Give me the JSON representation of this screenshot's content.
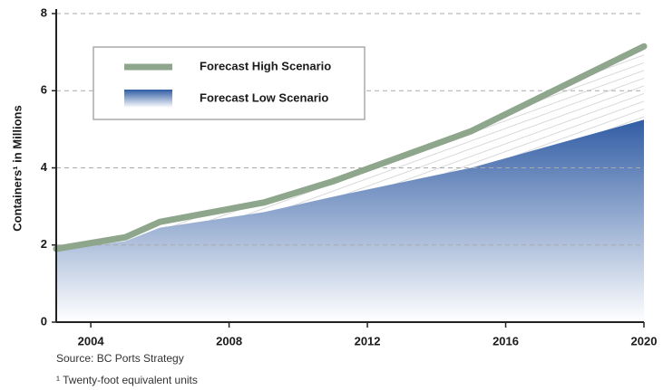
{
  "chart_data": {
    "type": "line",
    "y_label": "Containers¹ in Millions",
    "source": "Source: BC Ports Strategy",
    "footnote": "¹ Twenty-foot equivalent units",
    "x": [
      2003,
      2005,
      2006,
      2009,
      2011,
      2015,
      2020
    ],
    "series": [
      {
        "name": "Forecast High Scenario",
        "color": "#8ea68b",
        "values": [
          1.9,
          2.2,
          2.6,
          3.1,
          3.65,
          4.95,
          7.15
        ]
      },
      {
        "name": "Forecast Low Scenario",
        "color": "#2f5ba3",
        "values": [
          1.85,
          2.1,
          2.45,
          2.85,
          3.25,
          4.0,
          5.25
        ]
      }
    ],
    "xlim": [
      2003,
      2020
    ],
    "xticks": [
      2004,
      2008,
      2012,
      2016,
      2020
    ],
    "ylim": [
      0,
      8
    ],
    "yticks": [
      0,
      2,
      4,
      6,
      8
    ],
    "grid": true
  }
}
